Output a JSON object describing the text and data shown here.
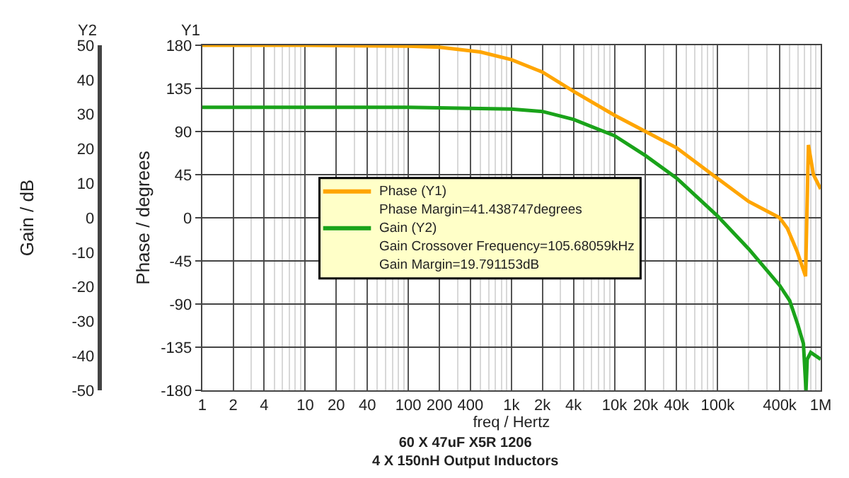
{
  "chart_data": {
    "type": "line",
    "xlabel": "freq / Hertz",
    "ylabel": "Phase / degrees",
    "y2label": "Gain / dB",
    "log": "x",
    "grid": true,
    "legend": "center left",
    "marker": "none",
    "line_style": "solid",
    "xlim": [
      1,
      1000000
    ],
    "xticks": [
      1,
      2,
      4,
      10,
      20,
      40,
      100,
      200,
      400,
      {
        "value": 1000,
        "label": "1k"
      },
      {
        "value": 2000,
        "label": "2k"
      },
      {
        "value": 4000,
        "label": "4k"
      },
      {
        "value": 10000,
        "label": "10k"
      },
      {
        "value": 20000,
        "label": "20k"
      },
      {
        "value": 40000,
        "label": "40k"
      },
      {
        "value": 100000,
        "label": "100k"
      },
      {
        "value": 400000,
        "label": "400k"
      },
      {
        "value": 1000000,
        "label": "1M"
      }
    ],
    "ylim": [
      -180,
      180
    ],
    "yticks": [
      -180,
      -135,
      -90,
      -45,
      0,
      45,
      90,
      135,
      180
    ],
    "y2lim": [
      -50,
      50
    ],
    "y2ticks": [
      -50,
      -40,
      -30,
      -20,
      -10,
      0,
      10,
      20,
      30,
      40,
      50
    ],
    "series": [
      {
        "name": "Phase (Y1)",
        "color": "#ffa500",
        "x": [
          1,
          10,
          100,
          200,
          500,
          1000,
          2000,
          4000,
          10000,
          20000,
          40000,
          100000,
          200000,
          400000,
          475000,
          590000,
          713000,
          760000,
          850000,
          1000000
        ],
        "values": [
          180,
          180,
          179,
          178,
          173,
          165,
          152,
          132,
          107,
          90,
          73,
          41,
          17,
          0,
          -11,
          -35,
          -61,
          76,
          45,
          30
        ]
      },
      {
        "name": "Gain (Y2)",
        "color": "#1aa31a",
        "axis": "y2",
        "x": [
          1,
          10,
          100,
          1000,
          2000,
          4000,
          10000,
          20000,
          40000,
          100000,
          200000,
          400000,
          500000,
          600000,
          680000,
          720000,
          740000,
          800000,
          1000000
        ],
        "values": [
          32,
          32,
          32,
          31.5,
          30.8,
          28.5,
          23.8,
          18,
          11.5,
          0.5,
          -9,
          -19.6,
          -24,
          -31,
          -36.5,
          -50,
          -41,
          -39,
          -41
        ]
      }
    ],
    "annotations": [
      "Y2",
      "Y1",
      "Phase Margin=41.438747degrees",
      "Gain Crossover Frequency=105.68059kHz",
      "Gain Margin=19.791153dB",
      "60 X 47uF X5R 1206\n4 X 150nH Output Inductors"
    ]
  }
}
